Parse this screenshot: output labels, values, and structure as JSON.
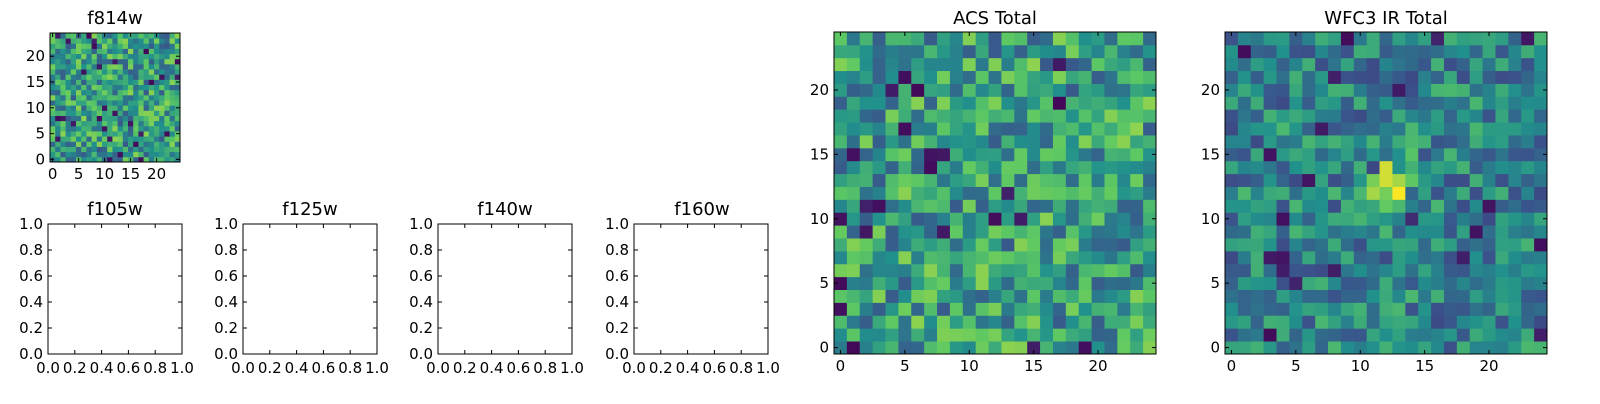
{
  "figure": {
    "background": "#ffffff"
  },
  "colormap": [
    "#440154",
    "#3b528b",
    "#21918c",
    "#5ec962",
    "#fde725"
  ],
  "chart_data": [
    {
      "id": "f814w",
      "type": "heatmap",
      "title": "f814w",
      "grid_size": 25,
      "xlim": [
        -0.5,
        24.5
      ],
      "ylim": [
        -0.5,
        24.5
      ],
      "xticks": [
        0,
        5,
        10,
        15,
        20
      ],
      "yticks": [
        0,
        5,
        10,
        15,
        20
      ],
      "values_description": "noise-like image, values mostly mid-to-high (green/yellow)",
      "seed": 11,
      "pattern": "noise"
    },
    {
      "id": "f105w",
      "type": "empty",
      "title": "f105w",
      "xlim": [
        0,
        1
      ],
      "ylim": [
        0,
        1
      ],
      "xtick_labels": [
        "0.0",
        "0.2",
        "0.4",
        "0.6",
        "0.8",
        "1.0"
      ],
      "ytick_labels": [
        "0.0",
        "0.2",
        "0.4",
        "0.6",
        "0.8",
        "1.0"
      ]
    },
    {
      "id": "f125w",
      "type": "empty",
      "title": "f125w",
      "xlim": [
        0,
        1
      ],
      "ylim": [
        0,
        1
      ],
      "xtick_labels": [
        "0.0",
        "0.2",
        "0.4",
        "0.6",
        "0.8",
        "1.0"
      ],
      "ytick_labels": [
        "0.0",
        "0.2",
        "0.4",
        "0.6",
        "0.8",
        "1.0"
      ]
    },
    {
      "id": "f140w",
      "type": "empty",
      "title": "f140w",
      "xlim": [
        0,
        1
      ],
      "ylim": [
        0,
        1
      ],
      "xtick_labels": [
        "0.0",
        "0.2",
        "0.4",
        "0.6",
        "0.8",
        "1.0"
      ],
      "ytick_labels": [
        "0.0",
        "0.2",
        "0.4",
        "0.6",
        "0.8",
        "1.0"
      ]
    },
    {
      "id": "f160w",
      "type": "empty",
      "title": "f160w",
      "xlim": [
        0,
        1
      ],
      "ylim": [
        0,
        1
      ],
      "xtick_labels": [
        "0.0",
        "0.2",
        "0.4",
        "0.6",
        "0.8",
        "1.0"
      ],
      "ytick_labels": [
        "0.0",
        "0.2",
        "0.4",
        "0.6",
        "0.8",
        "1.0"
      ]
    },
    {
      "id": "acs",
      "type": "heatmap",
      "title": "ACS Total",
      "grid_size": 25,
      "xlim": [
        -0.5,
        24.5
      ],
      "ylim": [
        -0.5,
        24.5
      ],
      "xticks": [
        0,
        5,
        10,
        15,
        20
      ],
      "yticks": [
        0,
        5,
        10,
        15,
        20
      ],
      "values_description": "noise-like image, green/yellow with scattered dark pixels",
      "seed": 37,
      "pattern": "noise"
    },
    {
      "id": "wfc3",
      "type": "heatmap",
      "title": "WFC3 IR Total",
      "grid_size": 25,
      "xlim": [
        -0.5,
        24.5
      ],
      "ylim": [
        -0.5,
        24.5
      ],
      "xticks": [
        0,
        5,
        10,
        15,
        20
      ],
      "yticks": [
        0,
        5,
        10,
        15,
        20
      ],
      "values_description": "noise-like image with bright source near (12.5, 12.5)",
      "seed": 73,
      "pattern": "source",
      "source_center": [
        12.5,
        12.5
      ]
    }
  ]
}
